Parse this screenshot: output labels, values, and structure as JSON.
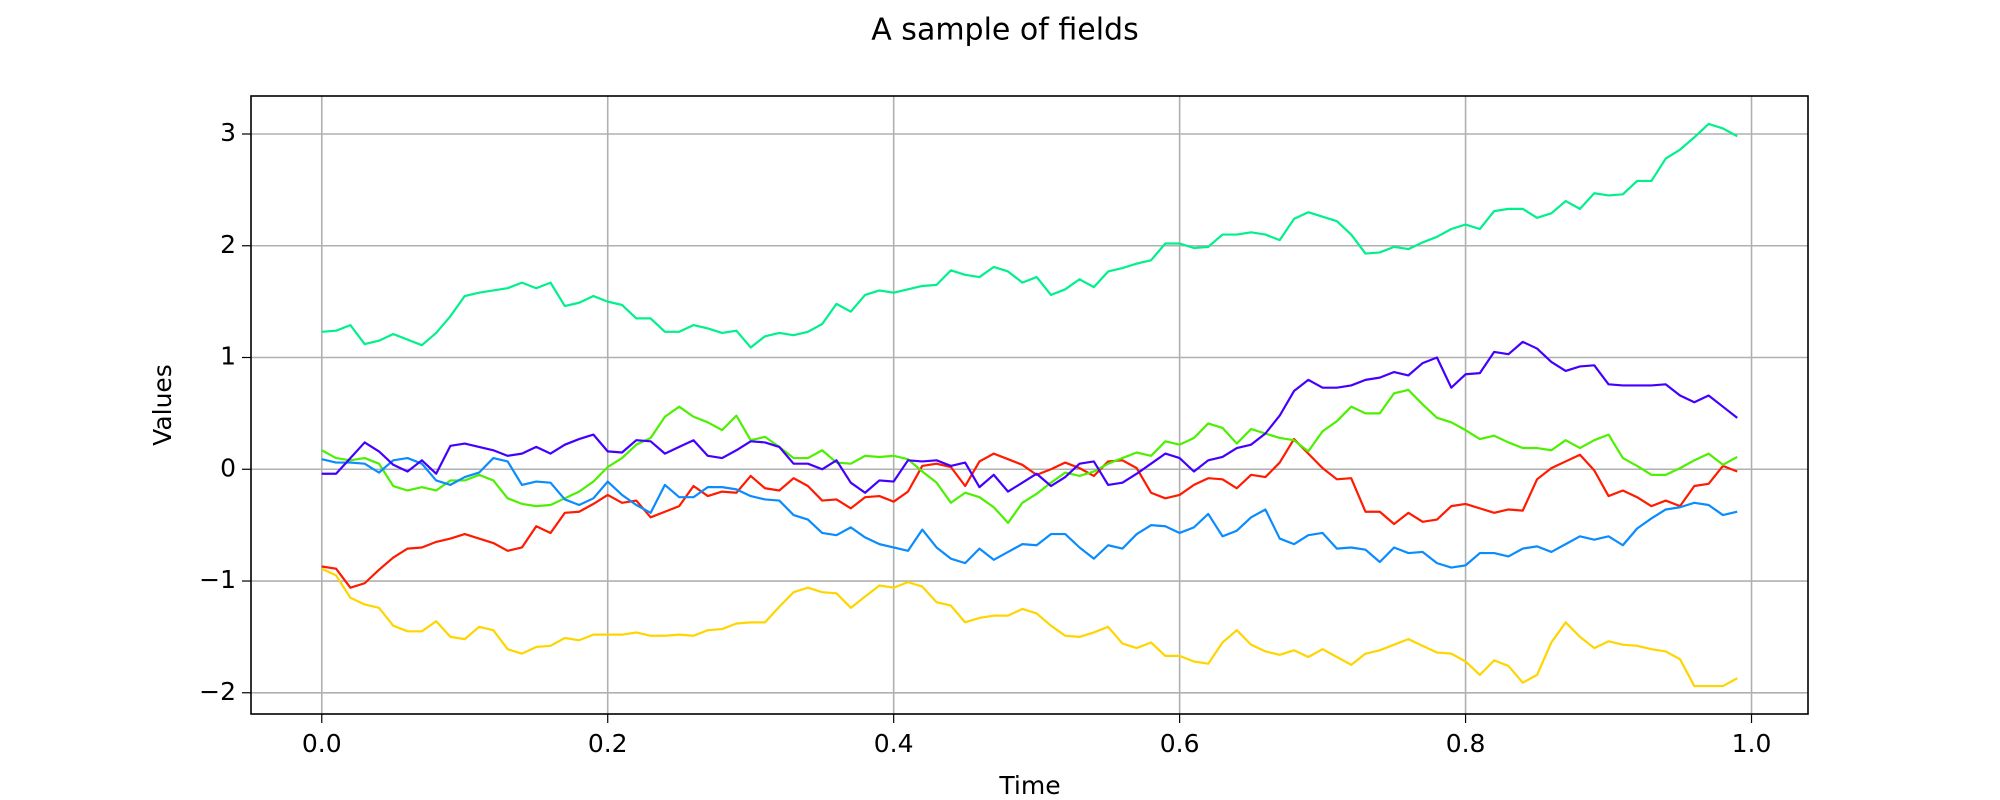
{
  "chart_data": {
    "type": "line",
    "title": "A sample of fields",
    "x_label": "Time",
    "y_label": "Values",
    "x": [
      0,
      0.01,
      0.02,
      0.03,
      0.04,
      0.05,
      0.06,
      0.07,
      0.08,
      0.09,
      0.1,
      0.11,
      0.12,
      0.13,
      0.14,
      0.15,
      0.16,
      0.17,
      0.18,
      0.19,
      0.2,
      0.21,
      0.22,
      0.23,
      0.24,
      0.25,
      0.26,
      0.27,
      0.28,
      0.29,
      0.3,
      0.31,
      0.32,
      0.33,
      0.34,
      0.35,
      0.36,
      0.37,
      0.38,
      0.39,
      0.4,
      0.41,
      0.42,
      0.43,
      0.44,
      0.45,
      0.46,
      0.47,
      0.48,
      0.49,
      0.5,
      0.51,
      0.52,
      0.53,
      0.54,
      0.55,
      0.56,
      0.57,
      0.58,
      0.59,
      0.6,
      0.61,
      0.62,
      0.63,
      0.64,
      0.65,
      0.66,
      0.67,
      0.68,
      0.69,
      0.7,
      0.71,
      0.72,
      0.73,
      0.74,
      0.75,
      0.76,
      0.77,
      0.78,
      0.79,
      0.8,
      0.81,
      0.82,
      0.83,
      0.84,
      0.85,
      0.86,
      0.87,
      0.88,
      0.89,
      0.9,
      0.91,
      0.92,
      0.93,
      0.94,
      0.95,
      0.96,
      0.97,
      0.98,
      0.99
    ],
    "series": [
      {
        "color": "#ff1a00",
        "values": [
          -0.87,
          -0.89,
          -1.06,
          -1.02,
          -0.9,
          -0.79,
          -0.71,
          -0.7,
          -0.65,
          -0.62,
          -0.58,
          -0.62,
          -0.66,
          -0.73,
          -0.7,
          -0.51,
          -0.57,
          -0.39,
          -0.38,
          -0.31,
          -0.23,
          -0.3,
          -0.28,
          -0.43,
          -0.38,
          -0.33,
          -0.15,
          -0.24,
          -0.2,
          -0.21,
          -0.06,
          -0.17,
          -0.19,
          -0.08,
          -0.15,
          -0.28,
          -0.27,
          -0.35,
          -0.25,
          -0.24,
          -0.29,
          -0.2,
          0.03,
          0.05,
          0.02,
          -0.15,
          0.07,
          0.14,
          0.09,
          0.04,
          -0.05,
          0.0,
          0.06,
          0.01,
          -0.06,
          0.07,
          0.08,
          0.01,
          -0.21,
          -0.26,
          -0.23,
          -0.14,
          -0.08,
          -0.09,
          -0.17,
          -0.05,
          -0.07,
          0.06,
          0.27,
          0.14,
          0.01,
          -0.09,
          -0.08,
          -0.38,
          -0.38,
          -0.49,
          -0.39,
          -0.47,
          -0.45,
          -0.33,
          -0.31,
          -0.35,
          -0.39,
          -0.36,
          -0.37,
          -0.09,
          0.01,
          0.07,
          0.13,
          -0.01,
          -0.24,
          -0.19,
          -0.25,
          -0.33,
          -0.28,
          -0.33,
          -0.15,
          -0.13,
          0.03,
          -0.02
        ]
      },
      {
        "color": "#ffd500",
        "values": [
          -0.89,
          -0.95,
          -1.15,
          -1.21,
          -1.24,
          -1.4,
          -1.45,
          -1.45,
          -1.36,
          -1.5,
          -1.52,
          -1.41,
          -1.44,
          -1.61,
          -1.65,
          -1.59,
          -1.58,
          -1.51,
          -1.53,
          -1.48,
          -1.48,
          -1.48,
          -1.46,
          -1.49,
          -1.49,
          -1.48,
          -1.49,
          -1.44,
          -1.43,
          -1.38,
          -1.37,
          -1.37,
          -1.23,
          -1.1,
          -1.06,
          -1.1,
          -1.11,
          -1.24,
          -1.14,
          -1.04,
          -1.06,
          -1.01,
          -1.05,
          -1.19,
          -1.22,
          -1.37,
          -1.33,
          -1.31,
          -1.31,
          -1.25,
          -1.29,
          -1.4,
          -1.49,
          -1.5,
          -1.46,
          -1.41,
          -1.56,
          -1.6,
          -1.55,
          -1.67,
          -1.67,
          -1.72,
          -1.74,
          -1.55,
          -1.44,
          -1.57,
          -1.63,
          -1.66,
          -1.62,
          -1.68,
          -1.61,
          -1.68,
          -1.75,
          -1.65,
          -1.62,
          -1.57,
          -1.52,
          -1.58,
          -1.64,
          -1.65,
          -1.72,
          -1.84,
          -1.71,
          -1.76,
          -1.91,
          -1.84,
          -1.55,
          -1.37,
          -1.5,
          -1.6,
          -1.54,
          -1.57,
          -1.58,
          -1.61,
          -1.63,
          -1.7,
          -1.94,
          -1.94,
          -1.94,
          -1.87
        ]
      },
      {
        "color": "#4cf000",
        "values": [
          0.17,
          0.1,
          0.08,
          0.1,
          0.05,
          -0.15,
          -0.19,
          -0.16,
          -0.19,
          -0.1,
          -0.1,
          -0.05,
          -0.1,
          -0.26,
          -0.31,
          -0.33,
          -0.32,
          -0.26,
          -0.2,
          -0.11,
          0.02,
          0.1,
          0.22,
          0.28,
          0.47,
          0.56,
          0.47,
          0.42,
          0.35,
          0.48,
          0.26,
          0.29,
          0.2,
          0.1,
          0.1,
          0.17,
          0.06,
          0.05,
          0.12,
          0.11,
          0.12,
          0.09,
          -0.02,
          -0.12,
          -0.3,
          -0.21,
          -0.25,
          -0.34,
          -0.48,
          -0.3,
          -0.22,
          -0.12,
          -0.03,
          -0.06,
          -0.02,
          0.05,
          0.1,
          0.15,
          0.12,
          0.25,
          0.22,
          0.28,
          0.41,
          0.37,
          0.23,
          0.36,
          0.32,
          0.28,
          0.26,
          0.16,
          0.34,
          0.43,
          0.56,
          0.5,
          0.5,
          0.68,
          0.71,
          0.58,
          0.46,
          0.42,
          0.35,
          0.27,
          0.3,
          0.24,
          0.19,
          0.19,
          0.17,
          0.26,
          0.19,
          0.26,
          0.31,
          0.1,
          0.03,
          -0.05,
          -0.05,
          0.01,
          0.08,
          0.14,
          0.04,
          0.11
        ]
      },
      {
        "color": "#00f08c",
        "values": [
          1.23,
          1.24,
          1.29,
          1.12,
          1.15,
          1.21,
          1.16,
          1.11,
          1.22,
          1.37,
          1.55,
          1.58,
          1.6,
          1.62,
          1.67,
          1.62,
          1.67,
          1.46,
          1.49,
          1.55,
          1.5,
          1.47,
          1.35,
          1.35,
          1.23,
          1.23,
          1.29,
          1.26,
          1.22,
          1.24,
          1.09,
          1.19,
          1.22,
          1.2,
          1.23,
          1.3,
          1.48,
          1.41,
          1.56,
          1.6,
          1.58,
          1.61,
          1.64,
          1.65,
          1.78,
          1.74,
          1.72,
          1.81,
          1.77,
          1.67,
          1.72,
          1.56,
          1.61,
          1.7,
          1.63,
          1.77,
          1.8,
          1.84,
          1.87,
          2.02,
          2.02,
          1.98,
          1.99,
          2.1,
          2.1,
          2.12,
          2.1,
          2.05,
          2.24,
          2.3,
          2.26,
          2.22,
          2.1,
          1.93,
          1.94,
          1.99,
          1.97,
          2.03,
          2.08,
          2.15,
          2.19,
          2.15,
          2.31,
          2.33,
          2.33,
          2.25,
          2.29,
          2.4,
          2.33,
          2.47,
          2.45,
          2.46,
          2.58,
          2.58,
          2.78,
          2.86,
          2.97,
          3.09,
          3.05,
          2.98
        ]
      },
      {
        "color": "#0a8cff",
        "values": [
          0.09,
          0.06,
          0.06,
          0.05,
          -0.03,
          0.08,
          0.1,
          0.05,
          -0.1,
          -0.14,
          -0.07,
          -0.03,
          0.1,
          0.07,
          -0.14,
          -0.11,
          -0.12,
          -0.27,
          -0.32,
          -0.26,
          -0.11,
          -0.23,
          -0.32,
          -0.39,
          -0.14,
          -0.25,
          -0.25,
          -0.16,
          -0.16,
          -0.18,
          -0.24,
          -0.27,
          -0.28,
          -0.41,
          -0.45,
          -0.57,
          -0.59,
          -0.52,
          -0.61,
          -0.67,
          -0.7,
          -0.73,
          -0.54,
          -0.7,
          -0.8,
          -0.84,
          -0.71,
          -0.81,
          -0.74,
          -0.67,
          -0.68,
          -0.58,
          -0.58,
          -0.7,
          -0.8,
          -0.68,
          -0.71,
          -0.58,
          -0.5,
          -0.51,
          -0.57,
          -0.52,
          -0.4,
          -0.6,
          -0.55,
          -0.43,
          -0.36,
          -0.62,
          -0.67,
          -0.59,
          -0.57,
          -0.71,
          -0.7,
          -0.72,
          -0.83,
          -0.7,
          -0.75,
          -0.74,
          -0.84,
          -0.88,
          -0.86,
          -0.75,
          -0.75,
          -0.78,
          -0.71,
          -0.69,
          -0.74,
          -0.67,
          -0.6,
          -0.63,
          -0.6,
          -0.68,
          -0.53,
          -0.44,
          -0.36,
          -0.34,
          -0.3,
          -0.32,
          -0.41,
          -0.38
        ]
      },
      {
        "color": "#4400ff",
        "values": [
          -0.04,
          -0.04,
          0.1,
          0.24,
          0.16,
          0.04,
          -0.02,
          0.08,
          -0.04,
          0.21,
          0.23,
          0.2,
          0.17,
          0.12,
          0.14,
          0.2,
          0.14,
          0.22,
          0.27,
          0.31,
          0.16,
          0.15,
          0.26,
          0.25,
          0.14,
          0.2,
          0.26,
          0.12,
          0.1,
          0.17,
          0.25,
          0.24,
          0.2,
          0.05,
          0.05,
          0.0,
          0.08,
          -0.12,
          -0.21,
          -0.1,
          -0.11,
          0.08,
          0.07,
          0.08,
          0.03,
          0.06,
          -0.16,
          -0.05,
          -0.2,
          -0.12,
          -0.04,
          -0.15,
          -0.07,
          0.05,
          0.07,
          -0.14,
          -0.12,
          -0.04,
          0.05,
          0.14,
          0.1,
          -0.02,
          0.08,
          0.11,
          0.19,
          0.22,
          0.32,
          0.48,
          0.7,
          0.8,
          0.73,
          0.73,
          0.75,
          0.8,
          0.82,
          0.87,
          0.84,
          0.95,
          1.0,
          0.73,
          0.85,
          0.86,
          1.05,
          1.03,
          1.14,
          1.08,
          0.96,
          0.88,
          0.92,
          0.93,
          0.76,
          0.75,
          0.75,
          0.75,
          0.76,
          0.66,
          0.6,
          0.66,
          0.56,
          0.46
        ]
      }
    ],
    "xlim": [
      -0.0495,
      1.0395
    ],
    "ylim": [
      -2.19,
      3.34
    ],
    "xticks": [
      {
        "value": 0,
        "label": "0.0"
      },
      0.2,
      0.4,
      0.6,
      0.8,
      {
        "value": 1,
        "label": "1.0"
      }
    ],
    "yticks": [
      {
        "value": -2,
        "label": "−2"
      },
      {
        "value": -1,
        "label": "−1"
      },
      0,
      1,
      2,
      3
    ],
    "grid": true
  }
}
